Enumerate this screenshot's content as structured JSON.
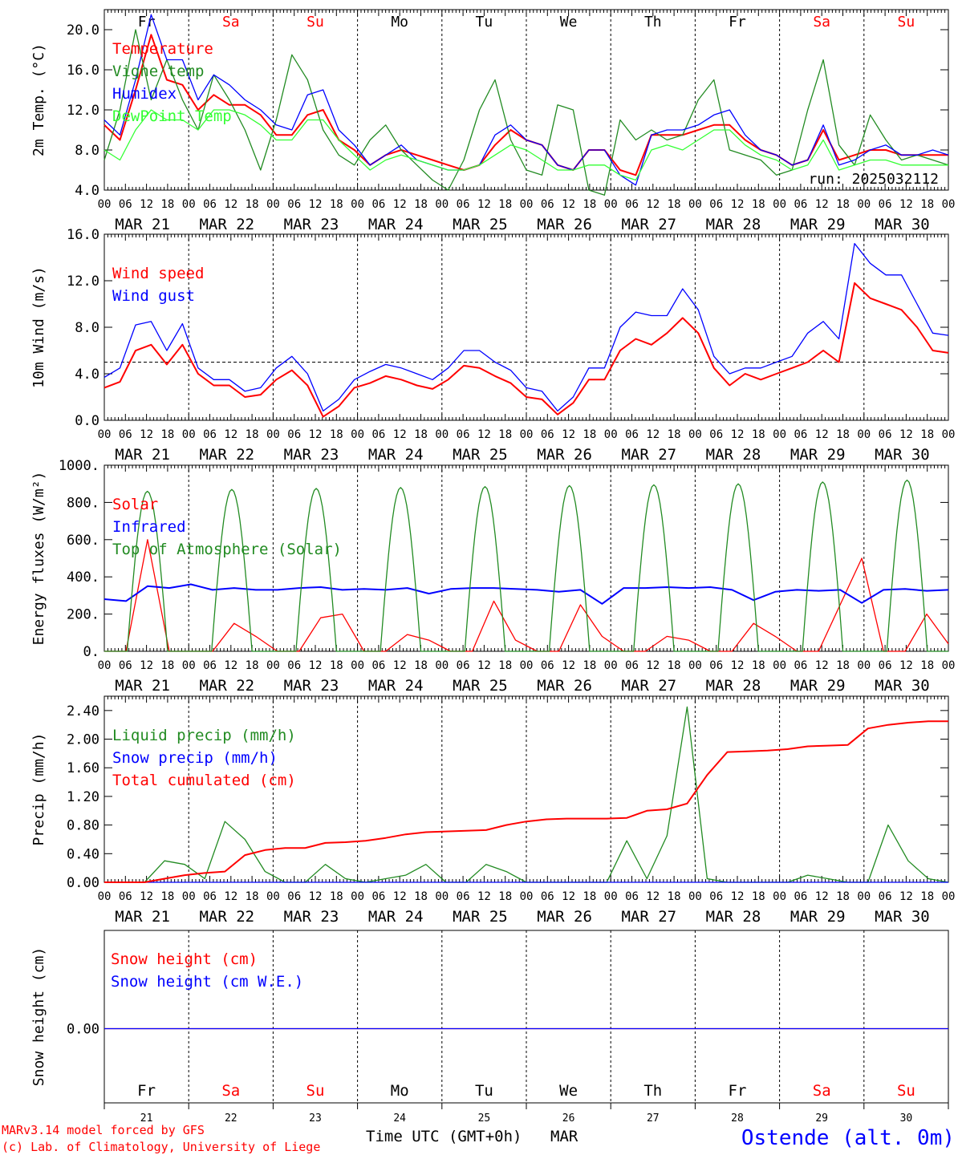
{
  "day_names": [
    "Fr",
    "Sa",
    "Su",
    "Mo",
    "Tu",
    "We",
    "Th",
    "Fr",
    "Sa",
    "Su"
  ],
  "day_colors": [
    "#000000",
    "#ff0000",
    "#ff0000",
    "#000000",
    "#000000",
    "#000000",
    "#000000",
    "#000000",
    "#ff0000",
    "#ff0000"
  ],
  "date_labels": [
    "MAR 21",
    "MAR 22",
    "MAR 23",
    "MAR 24",
    "MAR 25",
    "MAR 26",
    "MAR 27",
    "MAR 28",
    "MAR 29",
    "MAR 30"
  ],
  "hour_ticks": [
    "00",
    "06",
    "12",
    "18"
  ],
  "day_numbers": [
    "21",
    "22",
    "23",
    "24",
    "25",
    "26",
    "27",
    "28",
    "29",
    "30"
  ],
  "footer": {
    "model": "MARv3.14 model forced by GFS",
    "lab": "(c) Lab. of Climatology, University of Liege",
    "xlabel": "Time UTC (GMT+0h)",
    "month": "MAR",
    "station": "Ostende (alt. 0m)"
  },
  "colors": {
    "red": "#ff0000",
    "green": "#228b22",
    "blue": "#0000ff",
    "lightgreen": "#33ff33"
  },
  "chart_data": [
    {
      "id": "temp",
      "type": "line",
      "ylabel": "2m Temp. (°C)",
      "ylim": [
        4,
        22
      ],
      "yticks": [
        4,
        8,
        12,
        16,
        20
      ],
      "ytick_labels": [
        "4.0",
        "8.0",
        "12.0",
        "16.0",
        "20.0"
      ],
      "annotation": "run: 2025032112",
      "x": "hours since 2025-03-21 00 UTC, 6-hourly",
      "series": [
        {
          "name": "Temperature",
          "color": "red",
          "values": [
            10.5,
            9,
            14,
            19.5,
            15,
            14.5,
            12,
            13.5,
            12.5,
            12.5,
            11.5,
            9.5,
            9.5,
            11.5,
            12,
            9,
            8,
            6.5,
            7.5,
            8,
            7.5,
            7,
            6.5,
            6,
            6.5,
            8.5,
            10,
            9,
            8.5,
            6.5,
            6,
            8,
            8,
            6,
            5.5,
            9.5,
            9.5,
            9.5,
            10,
            10.5,
            10.5,
            9,
            8,
            7.5,
            6.5,
            7,
            10,
            7,
            7.5,
            8,
            8,
            7.5,
            7.5,
            7.5,
            7.5
          ]
        },
        {
          "name": "Vigne temp",
          "color": "green",
          "values": [
            7,
            12,
            20,
            13,
            17,
            13,
            10,
            15.5,
            13,
            10,
            6,
            11,
            17.5,
            15,
            10,
            7.5,
            6.5,
            9,
            10.5,
            8,
            6.5,
            5,
            4,
            7,
            12,
            15,
            9,
            6,
            5.5,
            12.5,
            12,
            4,
            3.5,
            11,
            9,
            10,
            9,
            9.5,
            13,
            15,
            8,
            7.5,
            7,
            5.5,
            6,
            12,
            17,
            8.5,
            6.5,
            11.5,
            9,
            7,
            7.5,
            7,
            6.5
          ]
        },
        {
          "name": "Humidex",
          "color": "blue",
          "values": [
            11,
            9.5,
            15,
            21.5,
            17,
            17,
            13,
            15.5,
            14.5,
            13,
            12,
            10.5,
            10,
            13.5,
            14,
            10,
            8.5,
            6.5,
            7.5,
            8.5,
            7,
            6.5,
            6,
            6,
            6.5,
            9.5,
            10.5,
            9,
            8.5,
            6.5,
            6,
            8,
            8,
            5.5,
            4.5,
            9.5,
            10,
            10,
            10.5,
            11.5,
            12,
            9.5,
            8,
            7.5,
            6.5,
            7,
            10.5,
            6.5,
            7,
            8,
            8.5,
            7.5,
            7.5,
            8,
            7.5
          ]
        },
        {
          "name": "DewPoint Temp",
          "color": "lightgreen",
          "values": [
            8,
            7,
            10,
            12,
            11,
            11,
            10,
            12,
            12,
            11.5,
            10.5,
            9,
            9,
            11,
            11,
            9,
            7.5,
            6,
            7,
            7.5,
            7,
            6.5,
            6,
            6,
            6.5,
            7.5,
            8.5,
            8,
            7,
            6,
            6,
            6.5,
            6.5,
            5.5,
            5,
            8,
            8.5,
            8,
            9,
            10,
            10,
            8.5,
            7.5,
            7,
            6,
            6.5,
            9,
            6,
            6.5,
            7,
            7,
            6.5,
            6.5,
            6.5,
            6.5
          ]
        }
      ]
    },
    {
      "id": "wind",
      "type": "line",
      "ylabel": "10m Wind (m/s)",
      "ylim": [
        0,
        16
      ],
      "yticks": [
        0,
        4,
        8,
        12,
        16
      ],
      "ytick_labels": [
        "0.0",
        "4.0",
        "8.0",
        "12.0",
        "16.0"
      ],
      "hline": 5,
      "series": [
        {
          "name": "Wind speed",
          "color": "red",
          "values": [
            2.8,
            3.3,
            6,
            6.5,
            4.8,
            6.5,
            4,
            3,
            3,
            2,
            2.2,
            3.5,
            4.3,
            3,
            0.3,
            1.2,
            2.8,
            3.2,
            3.8,
            3.5,
            3,
            2.7,
            3.5,
            4.7,
            4.5,
            3.8,
            3.2,
            2,
            1.8,
            0.5,
            1.5,
            3.5,
            3.5,
            6,
            7,
            6.5,
            7.5,
            8.8,
            7.5,
            4.5,
            3,
            4,
            3.5,
            4,
            4.5,
            5,
            6,
            5,
            11.8,
            10.5,
            10,
            9.5,
            8,
            6,
            5.8
          ]
        },
        {
          "name": "Wind gust",
          "color": "blue",
          "values": [
            3.7,
            4.5,
            8.2,
            8.5,
            6,
            8.3,
            4.5,
            3.5,
            3.5,
            2.5,
            2.8,
            4.5,
            5.5,
            4,
            0.8,
            1.8,
            3.5,
            4.2,
            4.8,
            4.5,
            4,
            3.5,
            4.5,
            6,
            6,
            5,
            4.3,
            2.8,
            2.5,
            0.8,
            2,
            4.5,
            4.5,
            8,
            9.3,
            9,
            9,
            11.3,
            9.5,
            5.5,
            4,
            4.5,
            4.5,
            5,
            5.5,
            7.5,
            8.5,
            7,
            15.2,
            13.5,
            12.5,
            12.5,
            10,
            7.5,
            7.3
          ]
        }
      ]
    },
    {
      "id": "energy",
      "type": "line",
      "ylabel": "Energy fluxes (W/m²)",
      "ylim": [
        0,
        1000
      ],
      "yticks": [
        0,
        200,
        400,
        600,
        800,
        1000
      ],
      "ytick_labels": [
        "0.",
        "200.",
        "400.",
        "600.",
        "800.",
        "1000."
      ],
      "series": [
        {
          "name": "Solar",
          "color": "red",
          "values": [
            0,
            0,
            600,
            0,
            0,
            0,
            150,
            80,
            0,
            0,
            180,
            200,
            0,
            0,
            90,
            60,
            0,
            0,
            270,
            60,
            0,
            0,
            250,
            80,
            0,
            0,
            80,
            60,
            0,
            0,
            150,
            80,
            0,
            0,
            250,
            500,
            0,
            0,
            200,
            40
          ]
        },
        {
          "name": "Infrared",
          "color": "blue",
          "values": [
            280,
            270,
            350,
            340,
            360,
            330,
            340,
            330,
            330,
            340,
            345,
            330,
            335,
            330,
            340,
            310,
            335,
            340,
            340,
            335,
            330,
            320,
            330,
            255,
            340,
            340,
            345,
            340,
            345,
            330,
            275,
            320,
            330,
            325,
            330,
            260,
            330,
            335,
            325,
            330
          ]
        },
        {
          "name": "Top of Atmosphere (Solar)",
          "color": "green",
          "peaks": [
            860,
            870,
            875,
            880,
            885,
            890,
            895,
            900,
            910,
            920
          ]
        }
      ]
    },
    {
      "id": "precip",
      "type": "line",
      "ylabel": "Precip (mm/h)",
      "ylim": [
        0,
        2.6
      ],
      "yticks": [
        0,
        0.4,
        0.8,
        1.2,
        1.6,
        2.0,
        2.4
      ],
      "ytick_labels": [
        "0.00",
        "0.40",
        "0.80",
        "1.20",
        "1.60",
        "2.00",
        "2.40"
      ],
      "series": [
        {
          "name": "Liquid precip (mm/h)",
          "color": "green",
          "values": [
            0,
            0,
            0,
            0.3,
            0.25,
            0.05,
            0.85,
            0.6,
            0.15,
            0,
            0,
            0.25,
            0.05,
            0,
            0.05,
            0.1,
            0.25,
            0,
            0,
            0.25,
            0.15,
            0,
            0,
            0,
            0,
            0,
            0.58,
            0.05,
            0.65,
            2.45,
            0.05,
            0,
            0,
            0,
            0,
            0.1,
            0.05,
            0,
            0,
            0.8,
            0.3,
            0.05,
            0
          ]
        },
        {
          "name": "Snow precip (mm/h)",
          "color": "blue",
          "values": [
            0,
            0,
            0,
            0,
            0,
            0,
            0,
            0,
            0,
            0,
            0,
            0,
            0,
            0,
            0,
            0,
            0,
            0,
            0,
            0,
            0,
            0,
            0,
            0,
            0,
            0,
            0,
            0,
            0,
            0,
            0,
            0,
            0,
            0,
            0,
            0,
            0,
            0,
            0,
            0,
            0,
            0,
            0
          ]
        },
        {
          "name": "Total cumulated (cm)",
          "color": "red",
          "values": [
            0,
            0,
            0,
            0.05,
            0.1,
            0.13,
            0.15,
            0.38,
            0.45,
            0.48,
            0.48,
            0.55,
            0.56,
            0.58,
            0.62,
            0.67,
            0.7,
            0.71,
            0.72,
            0.73,
            0.8,
            0.85,
            0.88,
            0.89,
            0.89,
            0.89,
            0.9,
            1.0,
            1.02,
            1.1,
            1.5,
            1.82,
            1.83,
            1.84,
            1.86,
            1.9,
            1.91,
            1.92,
            2.15,
            2.2,
            2.23,
            2.25,
            2.25
          ]
        }
      ]
    },
    {
      "id": "snow",
      "type": "line",
      "ylabel": "Snow height (cm)",
      "ytick_labels": [
        "0.00"
      ],
      "series": [
        {
          "name": "Snow height (cm)",
          "color": "red",
          "values": [
            0,
            0
          ]
        },
        {
          "name": "Snow height (cm W.E.)",
          "color": "blue",
          "values": [
            0,
            0
          ]
        }
      ]
    }
  ]
}
